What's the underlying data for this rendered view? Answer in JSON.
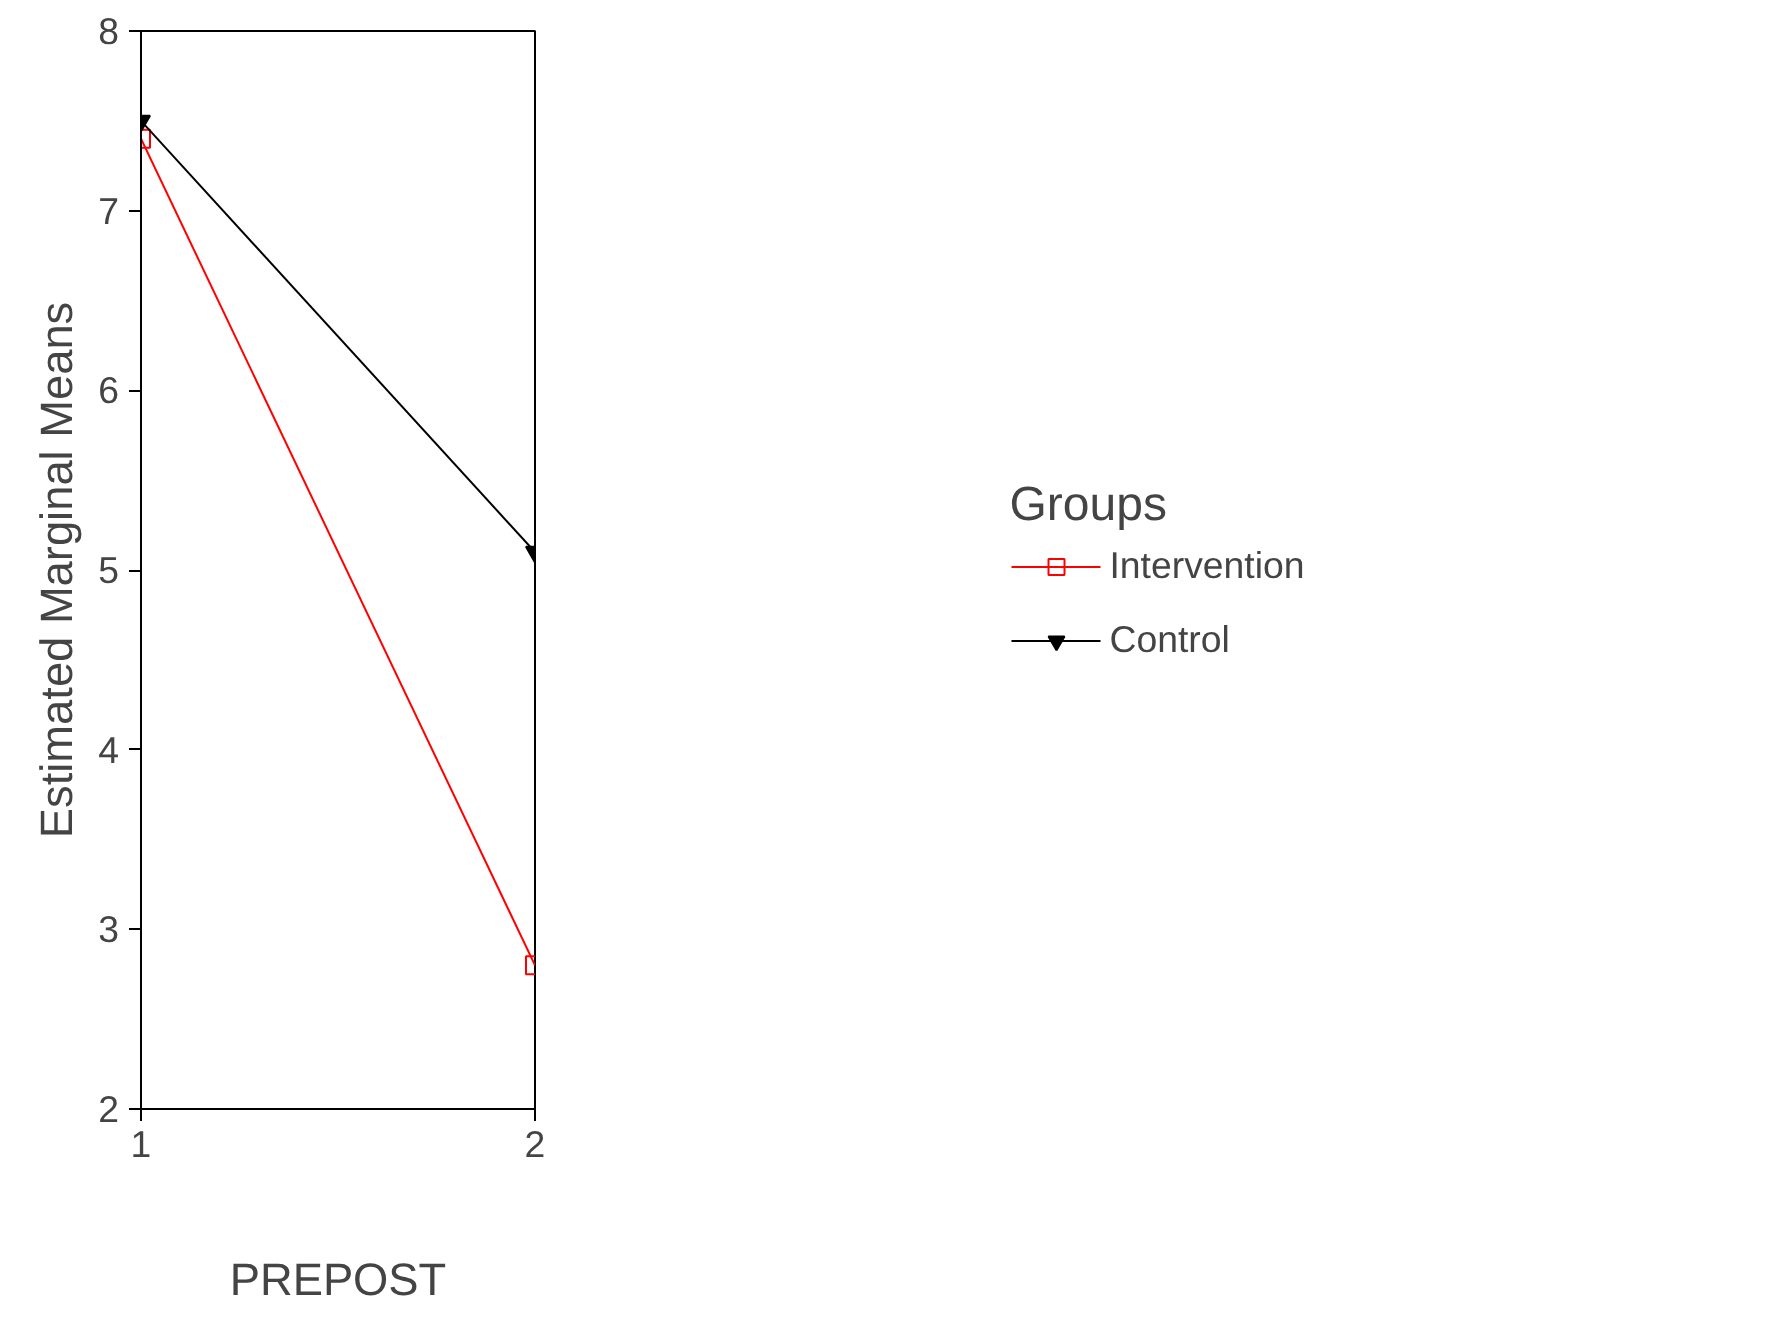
{
  "chart_data": {
    "type": "line",
    "xlabel": "PREPOST",
    "ylabel": "Estimated Marginal Means",
    "legend_title": "Groups",
    "x": [
      1,
      2
    ],
    "xlim": [
      1,
      2
    ],
    "xticks": [
      1,
      2
    ],
    "ylim": [
      2,
      8
    ],
    "yticks": [
      2,
      3,
      4,
      5,
      6,
      7,
      8
    ],
    "grid": false,
    "legend": "right",
    "series": [
      {
        "name": "Intervention",
        "color": "#ff0000",
        "marker": "square",
        "values": [
          7.4,
          2.8
        ]
      },
      {
        "name": "Control",
        "color": "#000000",
        "marker": "triangle",
        "values": [
          7.5,
          5.1
        ]
      }
    ]
  }
}
